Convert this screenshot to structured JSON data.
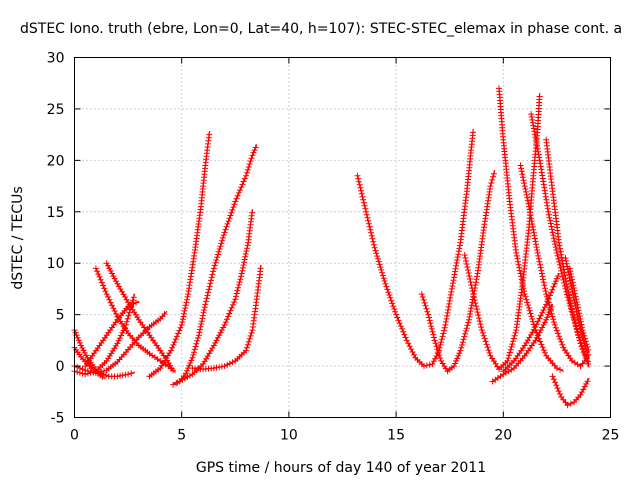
{
  "chart_data": {
    "type": "scatter",
    "title": "dSTEC Iono. truth (ebre, Lon=0, Lat=40, h=107): STEC-STEC_elemax in phase cont. a",
    "xlabel": "GPS time / hours of day 140 of year 2011",
    "ylabel": "dSTEC  / TECUs",
    "xlim": [
      0,
      25
    ],
    "ylim": [
      -5,
      30
    ],
    "xticks": [
      "0",
      "5",
      "10",
      "15",
      "20",
      "25"
    ],
    "yticks": [
      "-5",
      "0",
      "5",
      "10",
      "15",
      "20",
      "25",
      "30"
    ],
    "grid": true,
    "marker": "+",
    "color": "#ff0000",
    "series": [
      {
        "points": [
          [
            0.0,
            3.5
          ],
          [
            0.3,
            2.0
          ],
          [
            0.6,
            0.8
          ],
          [
            0.9,
            -0.1
          ],
          [
            1.2,
            -0.7
          ],
          [
            1.6,
            -1.0
          ],
          [
            2.0,
            -1.0
          ],
          [
            2.5,
            -0.8
          ],
          [
            2.8,
            -0.6
          ]
        ]
      },
      {
        "points": [
          [
            0.0,
            1.8
          ],
          [
            0.3,
            0.9
          ],
          [
            0.6,
            0.2
          ],
          [
            0.9,
            -0.4
          ],
          [
            1.2,
            -0.9
          ],
          [
            1.4,
            -1.2
          ]
        ]
      },
      {
        "points": [
          [
            0.0,
            0.0
          ],
          [
            0.5,
            -0.4
          ],
          [
            1.0,
            -0.7
          ],
          [
            1.5,
            -0.4
          ],
          [
            2.0,
            0.4
          ],
          [
            2.5,
            1.6
          ],
          [
            3.0,
            2.8
          ],
          [
            3.5,
            3.8
          ],
          [
            4.0,
            4.6
          ],
          [
            4.3,
            5.3
          ]
        ]
      },
      {
        "points": [
          [
            0.0,
            -0.5
          ],
          [
            0.5,
            -0.8
          ],
          [
            1.0,
            -0.5
          ],
          [
            1.5,
            0.5
          ],
          [
            2.0,
            2.2
          ],
          [
            2.4,
            4.0
          ],
          [
            2.6,
            5.5
          ],
          [
            2.8,
            7.0
          ]
        ]
      },
      {
        "points": [
          [
            0.5,
            0.0
          ],
          [
            1.0,
            1.5
          ],
          [
            1.5,
            3.0
          ],
          [
            2.0,
            4.5
          ],
          [
            2.5,
            5.8
          ],
          [
            3.0,
            6.3
          ]
        ]
      },
      {
        "points": [
          [
            1.0,
            9.5
          ],
          [
            1.5,
            7.0
          ],
          [
            2.0,
            4.8
          ],
          [
            2.5,
            3.2
          ],
          [
            3.0,
            2.0
          ],
          [
            3.5,
            1.2
          ],
          [
            4.0,
            0.5
          ],
          [
            4.5,
            -0.2
          ],
          [
            4.7,
            -0.6
          ]
        ]
      },
      {
        "points": [
          [
            1.5,
            10.0
          ],
          [
            2.0,
            8.0
          ],
          [
            2.5,
            6.2
          ],
          [
            3.0,
            4.5
          ],
          [
            3.5,
            3.0
          ],
          [
            4.0,
            1.5
          ],
          [
            4.4,
            0.3
          ],
          [
            4.6,
            -0.5
          ]
        ]
      },
      {
        "points": [
          [
            4.6,
            -1.8
          ],
          [
            4.9,
            -1.5
          ],
          [
            5.2,
            -0.7
          ],
          [
            5.5,
            0.8
          ],
          [
            5.8,
            3.0
          ],
          [
            6.1,
            6.0
          ],
          [
            6.5,
            9.5
          ],
          [
            7.0,
            13.0
          ],
          [
            7.5,
            16.0
          ],
          [
            8.0,
            18.5
          ],
          [
            8.3,
            20.5
          ],
          [
            8.5,
            21.5
          ]
        ]
      },
      {
        "points": [
          [
            3.5,
            -1.0
          ],
          [
            4.0,
            -0.2
          ],
          [
            4.5,
            1.5
          ],
          [
            5.0,
            4.0
          ],
          [
            5.3,
            7.0
          ],
          [
            5.6,
            11.0
          ],
          [
            5.9,
            15.5
          ],
          [
            6.1,
            19.5
          ],
          [
            6.3,
            22.8
          ]
        ]
      },
      {
        "points": [
          [
            4.8,
            -1.6
          ],
          [
            5.5,
            -0.8
          ],
          [
            6.0,
            0.2
          ],
          [
            6.5,
            2.0
          ],
          [
            7.0,
            4.0
          ],
          [
            7.5,
            6.5
          ],
          [
            7.8,
            9.0
          ],
          [
            8.1,
            12.0
          ],
          [
            8.3,
            15.2
          ]
        ]
      },
      {
        "points": [
          [
            5.5,
            -0.2
          ],
          [
            6.0,
            -0.3
          ],
          [
            6.5,
            -0.2
          ],
          [
            7.0,
            0.0
          ],
          [
            7.5,
            0.5
          ],
          [
            8.0,
            1.5
          ],
          [
            8.3,
            3.5
          ],
          [
            8.5,
            6.5
          ],
          [
            8.7,
            9.8
          ]
        ]
      },
      {
        "points": [
          [
            13.2,
            18.5
          ],
          [
            13.6,
            15.0
          ],
          [
            14.0,
            11.5
          ],
          [
            14.5,
            8.0
          ],
          [
            15.0,
            5.0
          ],
          [
            15.5,
            2.5
          ],
          [
            15.9,
            0.8
          ],
          [
            16.3,
            0.0
          ],
          [
            16.7,
            0.2
          ],
          [
            17.0,
            1.5
          ],
          [
            17.3,
            4.0
          ],
          [
            17.6,
            7.5
          ],
          [
            18.0,
            12.0
          ],
          [
            18.3,
            17.0
          ],
          [
            18.5,
            21.0
          ],
          [
            18.6,
            23.0
          ]
        ]
      },
      {
        "points": [
          [
            16.2,
            7.0
          ],
          [
            16.5,
            5.0
          ],
          [
            16.8,
            2.5
          ],
          [
            17.1,
            0.5
          ],
          [
            17.4,
            -0.5
          ],
          [
            17.7,
            0.0
          ],
          [
            18.0,
            1.5
          ],
          [
            18.4,
            4.5
          ],
          [
            18.8,
            9.0
          ],
          [
            19.1,
            13.5
          ],
          [
            19.4,
            17.5
          ],
          [
            19.6,
            19.0
          ]
        ]
      },
      {
        "points": [
          [
            18.2,
            10.8
          ],
          [
            18.6,
            7.0
          ],
          [
            19.0,
            3.5
          ],
          [
            19.4,
            1.0
          ],
          [
            19.8,
            -0.3
          ],
          [
            20.2,
            0.5
          ],
          [
            20.6,
            3.5
          ],
          [
            20.9,
            8.0
          ],
          [
            21.2,
            13.5
          ],
          [
            21.4,
            18.5
          ],
          [
            21.6,
            23.0
          ],
          [
            21.7,
            26.5
          ]
        ]
      },
      {
        "points": [
          [
            19.8,
            27.0
          ],
          [
            20.0,
            22.0
          ],
          [
            20.3,
            16.0
          ],
          [
            20.6,
            11.0
          ],
          [
            21.0,
            7.0
          ],
          [
            21.5,
            3.5
          ],
          [
            22.0,
            1.0
          ],
          [
            22.5,
            -0.2
          ],
          [
            22.8,
            -0.5
          ]
        ]
      },
      {
        "points": [
          [
            20.8,
            19.5
          ],
          [
            21.2,
            15.5
          ],
          [
            21.6,
            11.0
          ],
          [
            22.0,
            7.0
          ],
          [
            22.4,
            4.0
          ],
          [
            22.8,
            1.8
          ],
          [
            23.2,
            0.5
          ],
          [
            23.6,
            0.0
          ],
          [
            24.0,
            1.0
          ]
        ]
      },
      {
        "points": [
          [
            21.3,
            24.5
          ],
          [
            21.7,
            20.0
          ],
          [
            22.1,
            15.0
          ],
          [
            22.5,
            11.0
          ],
          [
            22.9,
            7.5
          ],
          [
            23.3,
            4.5
          ],
          [
            23.6,
            2.2
          ],
          [
            23.9,
            0.5
          ],
          [
            24.0,
            -0.1
          ]
        ]
      },
      {
        "points": [
          [
            22.0,
            22.0
          ],
          [
            22.3,
            17.0
          ],
          [
            22.6,
            12.0
          ],
          [
            22.9,
            8.5
          ],
          [
            23.2,
            5.5
          ],
          [
            23.5,
            3.0
          ],
          [
            23.8,
            1.2
          ],
          [
            24.0,
            0.2
          ]
        ]
      },
      {
        "points": [
          [
            22.3,
            -1.0
          ],
          [
            22.7,
            -3.0
          ],
          [
            23.0,
            -3.8
          ],
          [
            23.3,
            -3.5
          ],
          [
            23.6,
            -2.8
          ],
          [
            24.0,
            -1.2
          ]
        ]
      },
      {
        "points": [
          [
            20.0,
            -0.5
          ],
          [
            20.5,
            0.5
          ],
          [
            21.0,
            2.0
          ],
          [
            21.5,
            3.8
          ],
          [
            22.0,
            6.0
          ],
          [
            22.4,
            8.0
          ],
          [
            22.6,
            9.0
          ]
        ]
      },
      {
        "points": [
          [
            19.5,
            -1.5
          ],
          [
            20.0,
            -0.8
          ],
          [
            20.5,
            -0.2
          ],
          [
            21.0,
            1.0
          ],
          [
            21.5,
            2.5
          ],
          [
            22.0,
            4.5
          ],
          [
            22.3,
            6.0
          ]
        ]
      },
      {
        "points": [
          [
            22.9,
            10.5
          ],
          [
            23.2,
            7.5
          ],
          [
            23.5,
            4.5
          ],
          [
            23.8,
            2.0
          ],
          [
            24.0,
            0.8
          ]
        ]
      },
      {
        "points": [
          [
            23.1,
            9.5
          ],
          [
            23.4,
            6.5
          ],
          [
            23.7,
            3.5
          ],
          [
            24.0,
            1.3
          ]
        ]
      }
    ]
  }
}
